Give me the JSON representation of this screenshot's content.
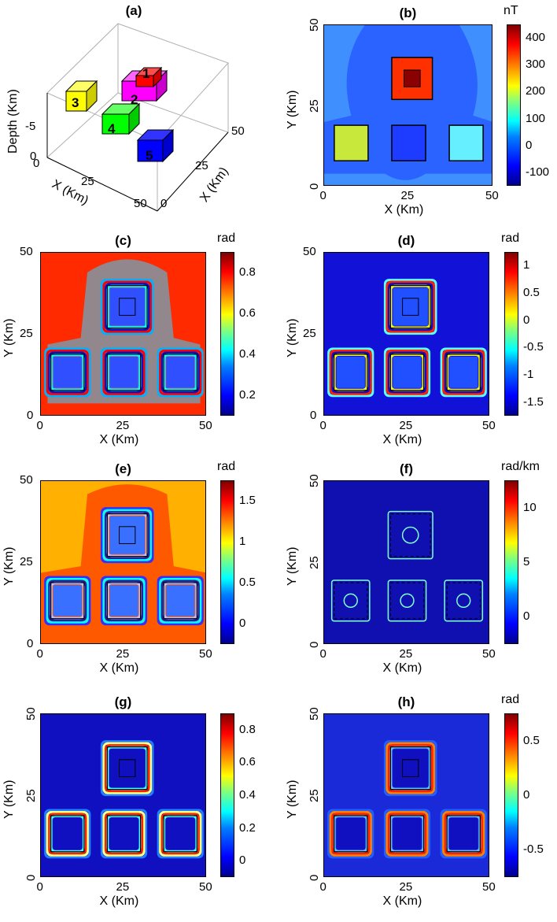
{
  "panels": {
    "a": {
      "title": "(a)",
      "xlabel": "X (Km)",
      "ylabel": "X (Km)",
      "zlabel": "Depth (Km)",
      "x_ticks": [
        "0",
        "25",
        "50"
      ],
      "y_ticks": [
        "0",
        "25",
        "50"
      ],
      "z_ticks": [
        "0",
        "-5"
      ],
      "bodies": [
        {
          "label": "1",
          "color": "#ff0000"
        },
        {
          "label": "2",
          "color": "#ff00ff"
        },
        {
          "label": "3",
          "color": "#ffff00"
        },
        {
          "label": "4",
          "color": "#00ff00"
        },
        {
          "label": "5",
          "color": "#0000ff"
        }
      ]
    },
    "b": {
      "title": "(b)",
      "unit": "nT",
      "cbar_ticks": [
        "400",
        "300",
        "200",
        "100",
        "0",
        "-100"
      ]
    },
    "c": {
      "title": "(c)",
      "unit": "rad",
      "cbar_ticks": [
        "0.8",
        "0.6",
        "0.4",
        "0.2"
      ]
    },
    "d": {
      "title": "(d)",
      "unit": "rad",
      "cbar_ticks": [
        "1",
        "0.5",
        "0",
        "-0.5",
        "-1",
        "-1.5"
      ]
    },
    "e": {
      "title": "(e)",
      "unit": "rad",
      "cbar_ticks": [
        "1.5",
        "1",
        "0.5",
        "0"
      ]
    },
    "f": {
      "title": "(f)",
      "unit": "rad/km",
      "cbar_ticks": [
        "10",
        "5",
        "0"
      ]
    },
    "g": {
      "title": "(g)",
      "unit": "",
      "cbar_ticks": [
        "0.8",
        "0.6",
        "0.4",
        "0.2",
        "0"
      ]
    },
    "h": {
      "title": "(h)",
      "unit": "rad",
      "cbar_ticks": [
        "0.5",
        "0",
        "-0.5"
      ]
    }
  },
  "map_axes": {
    "xlabel": "X (Km)",
    "ylabel": "Y (Km)",
    "x_ticks": [
      "0",
      "25",
      "50"
    ],
    "y_ticks": [
      "0",
      "25",
      "50"
    ]
  },
  "chart_data": [
    {
      "type": "other",
      "title": "(a)",
      "xlabel": "X (Km)",
      "ylabel": "X (Km)",
      "zlabel": "Depth (Km)",
      "xlim": [
        0,
        50
      ],
      "ylim": [
        0,
        50
      ],
      "zlim": [
        -8,
        0
      ],
      "annotations": [
        "1",
        "2",
        "3",
        "4",
        "5"
      ]
    },
    {
      "type": "heatmap",
      "title": "(b)",
      "xlabel": "X (Km)",
      "ylabel": "Y (Km)",
      "xlim": [
        0,
        50
      ],
      "ylim": [
        0,
        50
      ],
      "colorbar_label": "nT",
      "clim": [
        -160,
        440
      ]
    },
    {
      "type": "heatmap",
      "title": "(c)",
      "xlabel": "X (Km)",
      "ylabel": "Y (Km)",
      "xlim": [
        0,
        50
      ],
      "ylim": [
        0,
        50
      ],
      "colorbar_label": "rad",
      "clim": [
        0.05,
        0.95
      ]
    },
    {
      "type": "heatmap",
      "title": "(d)",
      "xlabel": "X (Km)",
      "ylabel": "Y (Km)",
      "xlim": [
        0,
        50
      ],
      "ylim": [
        0,
        50
      ],
      "colorbar_label": "rad",
      "clim": [
        -1.57,
        1.45
      ]
    },
    {
      "type": "heatmap",
      "title": "(e)",
      "xlabel": "X (Km)",
      "ylabel": "Y (Km)",
      "xlim": [
        0,
        50
      ],
      "ylim": [
        0,
        50
      ],
      "colorbar_label": "rad",
      "clim": [
        0,
        1.55
      ]
    },
    {
      "type": "heatmap",
      "title": "(f)",
      "xlabel": "X (Km)",
      "ylabel": "Y (Km)",
      "xlim": [
        0,
        50
      ],
      "ylim": [
        0,
        50
      ],
      "colorbar_label": "rad/km",
      "clim": [
        0,
        13.5
      ]
    },
    {
      "type": "heatmap",
      "title": "(g)",
      "xlabel": "X (Km)",
      "ylabel": "Y (Km)",
      "xlim": [
        0,
        50
      ],
      "ylim": [
        0,
        50
      ],
      "clim": [
        0,
        0.95
      ]
    },
    {
      "type": "heatmap",
      "title": "(h)",
      "xlabel": "X (Km)",
      "ylabel": "Y (Km)",
      "xlim": [
        0,
        50
      ],
      "ylim": [
        0,
        50
      ],
      "colorbar_label": "rad",
      "clim": [
        -0.95,
        0.72
      ]
    }
  ]
}
